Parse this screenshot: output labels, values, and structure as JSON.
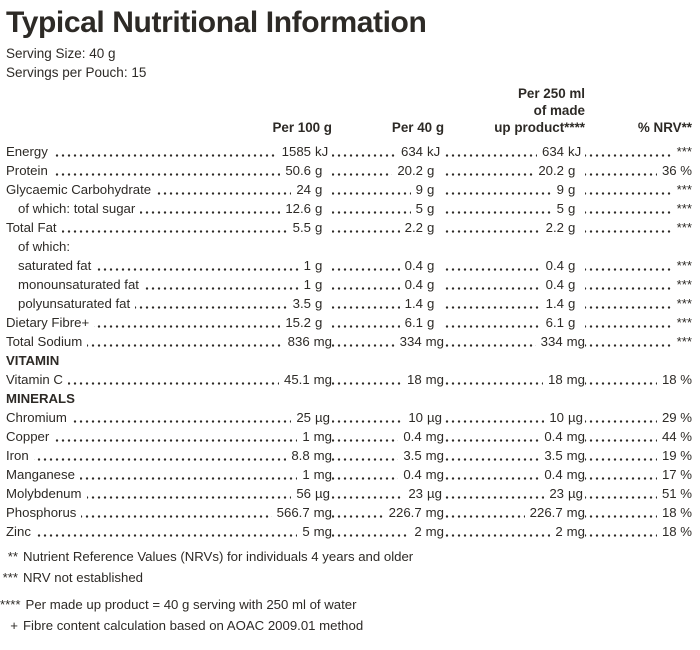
{
  "page": {
    "title": "Typical Nutritional Information",
    "serving_size": "Serving Size: 40 g",
    "servings_per_pouch": "Servings per Pouch: 15"
  },
  "colors": {
    "text": "#2d2a26",
    "background": "#ffffff"
  },
  "table": {
    "columns": {
      "col1": "Per 100 g",
      "col2": "Per 40 g",
      "col3_lines": [
        "Per 250 ml",
        "of made",
        "up product****"
      ],
      "col4": "% NRV**"
    },
    "rows": [
      {
        "type": "data",
        "indent": 0,
        "label": "Energy",
        "per_100g": {
          "num": "1585",
          "unit": "kJ"
        },
        "per_40g": {
          "num": "634",
          "unit": "kJ"
        },
        "per_250ml": {
          "num": "634",
          "unit": "kJ"
        },
        "nrv": "***"
      },
      {
        "type": "data",
        "indent": 0,
        "label": "Protein",
        "per_100g": {
          "num": "50.6",
          "unit": "g"
        },
        "per_40g": {
          "num": "20.2",
          "unit": "g"
        },
        "per_250ml": {
          "num": "20.2",
          "unit": "g"
        },
        "nrv": "36 %"
      },
      {
        "type": "data",
        "indent": 0,
        "label": "Glycaemic Carbohydrate",
        "per_100g": {
          "num": "24",
          "unit": "g"
        },
        "per_40g": {
          "num": "9",
          "unit": "g"
        },
        "per_250ml": {
          "num": "9",
          "unit": "g"
        },
        "nrv": "***"
      },
      {
        "type": "data",
        "indent": 1,
        "label": "of which: total sugar",
        "per_100g": {
          "num": "12.6",
          "unit": "g"
        },
        "per_40g": {
          "num": "5",
          "unit": "g"
        },
        "per_250ml": {
          "num": "5",
          "unit": "g"
        },
        "nrv": "***"
      },
      {
        "type": "data",
        "indent": 0,
        "label": "Total Fat",
        "per_100g": {
          "num": "5.5",
          "unit": "g"
        },
        "per_40g": {
          "num": "2.2",
          "unit": "g"
        },
        "per_250ml": {
          "num": "2.2",
          "unit": "g"
        },
        "nrv": "***"
      },
      {
        "type": "plain",
        "indent": 1,
        "label": "of which:"
      },
      {
        "type": "data",
        "indent": 1,
        "label": "saturated fat",
        "per_100g": {
          "num": "1",
          "unit": "g"
        },
        "per_40g": {
          "num": "0.4",
          "unit": "g"
        },
        "per_250ml": {
          "num": "0.4",
          "unit": "g"
        },
        "nrv": "***"
      },
      {
        "type": "data",
        "indent": 1,
        "label": "monounsaturated fat",
        "per_100g": {
          "num": "1",
          "unit": "g"
        },
        "per_40g": {
          "num": "0.4",
          "unit": "g"
        },
        "per_250ml": {
          "num": "0.4",
          "unit": "g"
        },
        "nrv": "***"
      },
      {
        "type": "data",
        "indent": 1,
        "label": "polyunsaturated fat",
        "per_100g": {
          "num": "3.5",
          "unit": "g"
        },
        "per_40g": {
          "num": "1.4",
          "unit": "g"
        },
        "per_250ml": {
          "num": "1.4",
          "unit": "g"
        },
        "nrv": "***"
      },
      {
        "type": "data",
        "indent": 0,
        "label": "Dietary Fibre+",
        "per_100g": {
          "num": "15.2",
          "unit": "g"
        },
        "per_40g": {
          "num": "6.1",
          "unit": "g"
        },
        "per_250ml": {
          "num": "6.1",
          "unit": "g"
        },
        "nrv": "***"
      },
      {
        "type": "data",
        "indent": 0,
        "label": "Total Sodium",
        "per_100g": {
          "num": "836",
          "unit": "mg"
        },
        "per_40g": {
          "num": "334",
          "unit": "mg"
        },
        "per_250ml": {
          "num": "334",
          "unit": "mg"
        },
        "nrv": "***"
      },
      {
        "type": "section",
        "indent": 0,
        "label": "VITAMIN"
      },
      {
        "type": "data",
        "indent": 0,
        "label": "Vitamin C",
        "per_100g": {
          "num": "45.1",
          "unit": "mg"
        },
        "per_40g": {
          "num": "18",
          "unit": "mg"
        },
        "per_250ml": {
          "num": "18",
          "unit": "mg"
        },
        "nrv": "18 %"
      },
      {
        "type": "section",
        "indent": 0,
        "label": "MINERALS"
      },
      {
        "type": "data",
        "indent": 0,
        "label": "Chromium",
        "per_100g": {
          "num": "25",
          "unit": "µg"
        },
        "per_40g": {
          "num": "10",
          "unit": "µg"
        },
        "per_250ml": {
          "num": "10",
          "unit": "µg"
        },
        "nrv": "29 %"
      },
      {
        "type": "data",
        "indent": 0,
        "label": "Copper",
        "per_100g": {
          "num": "1",
          "unit": "mg"
        },
        "per_40g": {
          "num": "0.4",
          "unit": "mg"
        },
        "per_250ml": {
          "num": "0.4",
          "unit": "mg"
        },
        "nrv": "44 %"
      },
      {
        "type": "data",
        "indent": 0,
        "label": "Iron",
        "per_100g": {
          "num": "8.8",
          "unit": "mg"
        },
        "per_40g": {
          "num": "3.5",
          "unit": "mg"
        },
        "per_250ml": {
          "num": "3.5",
          "unit": "mg"
        },
        "nrv": "19 %"
      },
      {
        "type": "data",
        "indent": 0,
        "label": "Manganese",
        "per_100g": {
          "num": "1",
          "unit": "mg"
        },
        "per_40g": {
          "num": "0.4",
          "unit": "mg"
        },
        "per_250ml": {
          "num": "0.4",
          "unit": "mg"
        },
        "nrv": "17 %"
      },
      {
        "type": "data",
        "indent": 0,
        "label": "Molybdenum",
        "per_100g": {
          "num": "56",
          "unit": "µg"
        },
        "per_40g": {
          "num": "23",
          "unit": "µg"
        },
        "per_250ml": {
          "num": "23",
          "unit": "µg"
        },
        "nrv": "51 %"
      },
      {
        "type": "data",
        "indent": 0,
        "label": "Phosphorus",
        "per_100g": {
          "num": "566.7",
          "unit": "mg"
        },
        "per_40g": {
          "num": "226.7",
          "unit": "mg"
        },
        "per_250ml": {
          "num": "226.7",
          "unit": "mg"
        },
        "nrv": "18 %"
      },
      {
        "type": "data",
        "indent": 0,
        "label": "Zinc",
        "per_100g": {
          "num": "5",
          "unit": "mg"
        },
        "per_40g": {
          "num": "2",
          "unit": "mg"
        },
        "per_250ml": {
          "num": "2",
          "unit": "mg"
        },
        "nrv": "18 %"
      }
    ]
  },
  "footnotes": [
    {
      "marker": "**",
      "text": "Nutrient Reference Values (NRVs) for individuals 4 years and older"
    },
    {
      "marker": "***",
      "text": "NRV not established"
    },
    {
      "marker": "****",
      "text": "Per made up product = 40 g serving with 250 ml of water"
    },
    {
      "marker": "+",
      "text": "Fibre content calculation based on AOAC 2009.01 method"
    }
  ]
}
